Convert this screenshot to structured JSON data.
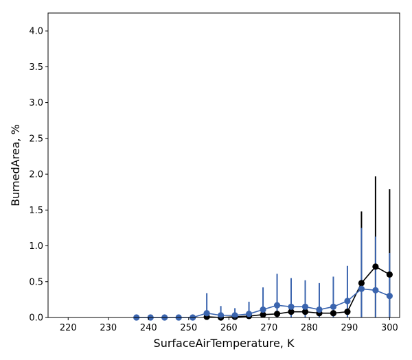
{
  "chart_data": {
    "type": "line",
    "xlabel": "SurfaceAirTemperature,  K",
    "ylabel": "BurnedArea,  %",
    "xlim": [
      215,
      302.5
    ],
    "ylim": [
      0,
      4.25
    ],
    "xticks": [
      220,
      230,
      240,
      250,
      260,
      270,
      280,
      290,
      300
    ],
    "yticks": [
      0.0,
      0.5,
      1.0,
      1.5,
      2.0,
      2.5,
      3.0,
      3.5,
      4.0
    ],
    "ytick_labels": [
      "0.0",
      "0.5",
      "1.0",
      "1.5",
      "2.0",
      "2.5",
      "3.0",
      "3.5",
      "4.0"
    ],
    "colors": {
      "black_series": "#000000",
      "blue_series": "#3a64ae"
    },
    "series": [
      {
        "color": "#000000",
        "x": [
          254.5,
          258.0,
          261.5,
          265.0,
          268.5,
          272.0,
          275.5,
          279.0,
          282.5,
          286.0,
          289.5,
          293.0,
          296.5,
          300.0
        ],
        "y": [
          0.01,
          0.0,
          0.01,
          0.02,
          0.04,
          0.05,
          0.08,
          0.08,
          0.06,
          0.06,
          0.08,
          0.48,
          0.71,
          0.6
        ],
        "err": [
          0.0,
          0.0,
          0.0,
          0.0,
          0.0,
          0.0,
          0.0,
          0.0,
          0.0,
          0.0,
          0.0,
          1.0,
          1.26,
          1.19
        ]
      },
      {
        "color": "#3a64ae",
        "x": [
          237.0,
          240.5,
          244.0,
          247.5,
          251.0,
          254.5,
          258.0,
          261.5,
          265.0,
          268.5,
          272.0,
          275.5,
          279.0,
          282.5,
          286.0,
          289.5,
          293.0,
          296.5,
          300.0
        ],
        "y": [
          0.0,
          0.0,
          0.0,
          0.0,
          0.0,
          0.06,
          0.03,
          0.03,
          0.05,
          0.11,
          0.17,
          0.15,
          0.15,
          0.11,
          0.15,
          0.23,
          0.4,
          0.38,
          0.3
        ],
        "err": [
          0.0,
          0.0,
          0.0,
          0.0,
          0.0,
          0.28,
          0.13,
          0.1,
          0.17,
          0.31,
          0.44,
          0.4,
          0.37,
          0.37,
          0.42,
          0.49,
          0.85,
          0.75,
          0.6
        ]
      }
    ]
  }
}
